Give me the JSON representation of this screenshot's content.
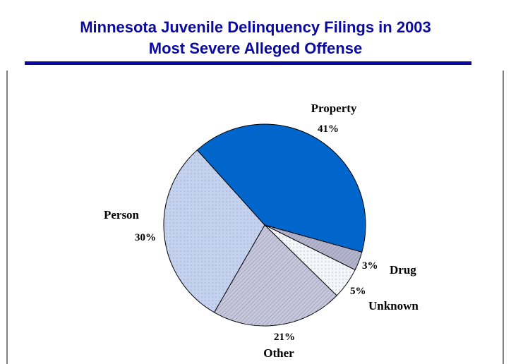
{
  "chart_data": {
    "type": "pie",
    "title": "Minnesota Juvenile Delinquency Filings in 2003",
    "subtitle": "Most Severe Alleged Offense",
    "categories": [
      "Property",
      "Drug",
      "Unknown",
      "Other",
      "Person"
    ],
    "values": [
      41,
      3,
      5,
      21,
      30
    ],
    "value_labels": [
      "41%",
      "3%",
      "5%",
      "21%",
      "30%"
    ],
    "colors": [
      "#0066cc",
      "#b4b4cc",
      "#f4f6fa",
      "#c8c8dc",
      "#c4d2f0"
    ]
  }
}
